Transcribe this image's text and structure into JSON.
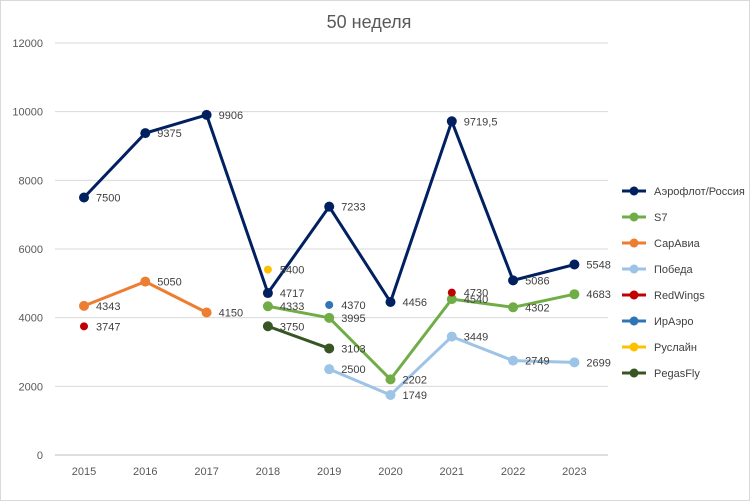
{
  "chart_data": {
    "type": "line",
    "title": "50 неделя",
    "xlabel": "",
    "ylabel": "",
    "ylim": [
      0,
      12000
    ],
    "yticks": [
      "0",
      "2000",
      "4000",
      "6000",
      "8000",
      "10000",
      "12000"
    ],
    "categories": [
      "2015",
      "2016",
      "2017",
      "2018",
      "2019",
      "2020",
      "2021",
      "2022",
      "2023"
    ],
    "grid": "horizontal",
    "legend_position": "right",
    "series": [
      {
        "name": "Аэрофлот/Россия",
        "color": "#002060",
        "values": [
          7500,
          9375,
          9906,
          4717,
          7233,
          4456,
          9719.5,
          5086,
          5548
        ],
        "labels": [
          "7500",
          "9375",
          "9906",
          "4717",
          "7233",
          "4456",
          "9719,5",
          "5086",
          "5548"
        ]
      },
      {
        "name": "S7",
        "color": "#70ad47",
        "values": [
          null,
          null,
          null,
          4333,
          3995,
          2202,
          4540,
          4302,
          4683
        ],
        "labels": [
          null,
          null,
          null,
          "4333",
          "3995",
          "2202",
          "4540",
          "4302",
          "4683"
        ]
      },
      {
        "name": "СарАвиа",
        "color": "#ed7d31",
        "values": [
          4343,
          5050,
          4150,
          null,
          null,
          null,
          null,
          null,
          null
        ],
        "labels": [
          "4343",
          "5050",
          "4150",
          null,
          null,
          null,
          null,
          null,
          null
        ]
      },
      {
        "name": "Победа",
        "color": "#9dc3e6",
        "values": [
          null,
          null,
          null,
          null,
          2500,
          1749,
          3449,
          2749,
          2699
        ],
        "labels": [
          null,
          null,
          null,
          null,
          "2500",
          "1749",
          "3449",
          "2749",
          "2699"
        ]
      },
      {
        "name": "RedWings",
        "color": "#c00000",
        "values": [
          3747,
          null,
          null,
          null,
          null,
          null,
          4730,
          null,
          null
        ],
        "labels": [
          "3747",
          null,
          null,
          null,
          null,
          null,
          "4730",
          null,
          null
        ]
      },
      {
        "name": "ИрАэро",
        "color": "#2e75b6",
        "values": [
          null,
          null,
          null,
          null,
          4370,
          null,
          null,
          null,
          null
        ],
        "labels": [
          null,
          null,
          null,
          null,
          "4370",
          null,
          null,
          null,
          null
        ]
      },
      {
        "name": "Руслайн",
        "color": "#ffc000",
        "values": [
          null,
          null,
          null,
          5400,
          null,
          null,
          null,
          null,
          null
        ],
        "labels": [
          null,
          null,
          null,
          "5400",
          null,
          null,
          null,
          null,
          null
        ]
      },
      {
        "name": "PegasFly",
        "color": "#375623",
        "values": [
          null,
          null,
          null,
          3750,
          3103,
          null,
          null,
          null,
          null
        ],
        "labels": [
          null,
          null,
          null,
          "3750",
          "3103",
          null,
          null,
          null,
          null
        ]
      }
    ]
  }
}
